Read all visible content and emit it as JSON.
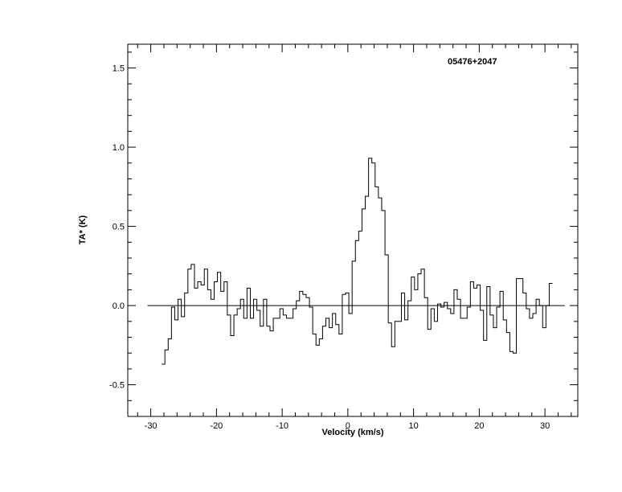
{
  "chart_data": {
    "type": "line",
    "drawstyle": "histogram-step",
    "label": "05476+2047",
    "xlabel": "Velocity (km/s)",
    "ylabel": "TA* (K)",
    "xlim": [
      -33.5,
      35
    ],
    "ylim": [
      -0.7,
      1.65
    ],
    "xticks": [
      -30,
      -20,
      -10,
      0,
      10,
      20,
      30
    ],
    "xtick_labels": [
      "-30",
      "-20",
      "-10",
      "0",
      "10",
      "20",
      "30"
    ],
    "yticks": [
      -0.5,
      0.0,
      0.5,
      1.0,
      1.5
    ],
    "ytick_labels": [
      "-0.5",
      "0.0",
      "0.5",
      "1.0",
      "1.5"
    ],
    "grid": false,
    "baseline": {
      "y": 0.0,
      "x_range": [
        -30.5,
        33
      ]
    },
    "series": [
      {
        "x": [
          -28.1,
          -27.6,
          -27.1,
          -26.6,
          -26.1,
          -25.6,
          -25.1,
          -24.6,
          -24.1,
          -23.6,
          -23.1,
          -22.6,
          -22.1,
          -21.6,
          -21.1,
          -20.6,
          -20.1,
          -19.6,
          -19.1,
          -18.6,
          -18.1,
          -17.6,
          -17.1,
          -16.6,
          -16.1,
          -15.6,
          -15.1,
          -14.6,
          -14.1,
          -13.6,
          -13.1,
          -12.6,
          -12.1,
          -11.6,
          -11.1,
          -10.6,
          -10.1,
          -9.6,
          -9.1,
          -8.6,
          -8.1,
          -7.6,
          -7.1,
          -6.6,
          -6.1,
          -5.6,
          -5.1,
          -4.6,
          -4.1,
          -3.6,
          -3.1,
          -2.6,
          -2.1,
          -1.6,
          -1.1,
          -0.6,
          -0.1,
          0.4,
          0.9,
          1.4,
          1.9,
          2.4,
          2.9,
          3.4,
          3.9,
          4.4,
          4.9,
          5.4,
          5.9,
          6.4,
          6.9,
          7.4,
          7.9,
          8.4,
          8.9,
          9.4,
          9.9,
          10.4,
          10.9,
          11.4,
          11.9,
          12.4,
          12.9,
          13.4,
          13.9,
          14.4,
          14.9,
          15.4,
          15.9,
          16.4,
          16.9,
          17.4,
          17.9,
          18.4,
          18.9,
          19.4,
          19.9,
          20.4,
          20.9,
          21.4,
          21.9,
          22.4,
          22.9,
          23.4,
          23.9,
          24.4,
          24.9,
          25.4,
          25.9,
          26.4,
          26.9,
          27.4,
          27.9,
          28.4,
          28.9,
          29.4,
          29.9,
          30.4,
          30.9
        ],
        "y": [
          -0.37,
          -0.28,
          -0.21,
          -0.01,
          -0.09,
          0.04,
          -0.07,
          0.08,
          0.23,
          0.26,
          0.11,
          0.15,
          0.13,
          0.23,
          0.1,
          0.04,
          0.15,
          0.21,
          0.09,
          0.15,
          -0.06,
          -0.19,
          -0.06,
          -0.02,
          0.04,
          -0.08,
          0.11,
          -0.08,
          0.04,
          -0.03,
          -0.13,
          0.04,
          -0.13,
          -0.16,
          -0.08,
          -0.08,
          -0.02,
          -0.06,
          -0.08,
          -0.08,
          -0.02,
          0.03,
          0.09,
          0.07,
          0.05,
          -0.01,
          -0.18,
          -0.25,
          -0.21,
          -0.13,
          -0.08,
          -0.14,
          -0.05,
          -0.12,
          -0.18,
          0.07,
          0.08,
          -0.05,
          0.28,
          0.41,
          0.47,
          0.61,
          0.69,
          0.93,
          0.9,
          0.75,
          0.68,
          0.6,
          0.32,
          -0.11,
          -0.26,
          -0.1,
          -0.1,
          0.08,
          -0.09,
          0.03,
          0.18,
          0.1,
          0.2,
          0.23,
          0.05,
          -0.15,
          -0.02,
          -0.1,
          0.01,
          -0.01,
          0.02,
          -0.02,
          -0.05,
          0.1,
          0.04,
          -0.08,
          -0.08,
          -0.01,
          0.15,
          0.11,
          0.13,
          -0.03,
          -0.22,
          0.12,
          -0.06,
          -0.14,
          -0.01,
          0.09,
          -0.09,
          -0.17,
          -0.29,
          -0.3,
          0.17,
          0.17,
          0.08,
          -0.02,
          -0.08,
          -0.05,
          0.04,
          0.0,
          -0.14,
          0.0,
          0.14
        ]
      }
    ]
  }
}
